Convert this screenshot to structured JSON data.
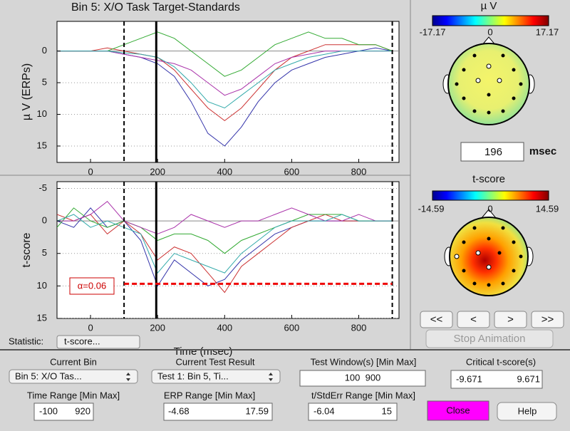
{
  "erp_plot": {
    "title": "Bin 5: X/O Task Target-Standards",
    "ylabel": "µ V (ERPs)",
    "xlim": [
      -100,
      920
    ],
    "ylim": [
      -4.68,
      17.59
    ],
    "xticks": [
      0,
      200,
      400,
      600,
      800
    ],
    "yticks": [
      0,
      5,
      10,
      15
    ],
    "window": [
      100,
      900
    ],
    "cursor_ms": 196,
    "x": [
      -100,
      -50,
      0,
      50,
      100,
      150,
      200,
      250,
      300,
      350,
      400,
      450,
      500,
      550,
      600,
      650,
      700,
      750,
      800,
      850,
      900
    ],
    "series": [
      {
        "color": "#3333aa",
        "values": [
          0,
          0,
          0,
          0,
          0.5,
          1,
          2,
          4,
          8,
          13,
          15,
          12,
          8,
          5,
          3,
          2,
          1,
          0.5,
          0,
          -0.5,
          0
        ]
      },
      {
        "color": "#cc3333",
        "values": [
          0,
          0,
          0,
          -0.5,
          0,
          0.5,
          1,
          3,
          6,
          9,
          11,
          9,
          6,
          3,
          1,
          0,
          -1,
          -1,
          -1,
          -1,
          0
        ]
      },
      {
        "color": "#33aa33",
        "values": [
          0,
          0,
          0,
          0,
          -1,
          -2,
          -3,
          -2,
          0,
          2,
          4,
          3,
          1,
          -1,
          -2,
          -3,
          -2,
          -2,
          -1,
          -1,
          0
        ]
      },
      {
        "color": "#aa33aa",
        "values": [
          0,
          0,
          0,
          0,
          0.5,
          1,
          1.5,
          2,
          3,
          5,
          7,
          6,
          4,
          2,
          1,
          0.5,
          0,
          0,
          0,
          0,
          0
        ]
      },
      {
        "color": "#33aaaa",
        "values": [
          0,
          0,
          0,
          0,
          0.3,
          0.5,
          1,
          2.5,
          5,
          8,
          9,
          7,
          5,
          3,
          2,
          1,
          0.5,
          0,
          0,
          0,
          0
        ]
      }
    ]
  },
  "tscore_plot": {
    "ylabel": "t-score",
    "xlabel": "Time (msec)",
    "xlim": [
      -100,
      920
    ],
    "ylim": [
      -6.04,
      15
    ],
    "xticks": [
      0,
      200,
      400,
      600,
      800
    ],
    "yticks": [
      -5,
      0,
      5,
      10,
      15
    ],
    "window": [
      100,
      900
    ],
    "cursor_ms": 196,
    "threshold": 9.671,
    "alpha_label": "α=0.06",
    "x": [
      -100,
      -50,
      0,
      50,
      100,
      150,
      200,
      250,
      300,
      350,
      400,
      450,
      500,
      550,
      600,
      650,
      700,
      750,
      800,
      850,
      900
    ],
    "series": [
      {
        "color": "#3333aa",
        "values": [
          0,
          1,
          -2,
          1,
          0,
          3,
          10,
          6,
          8,
          10,
          9,
          6,
          4,
          2,
          1,
          0,
          0,
          0,
          0,
          0,
          0
        ]
      },
      {
        "color": "#cc3333",
        "values": [
          -1,
          0,
          -1,
          2,
          0,
          2,
          6,
          4,
          5,
          8,
          11,
          7,
          5,
          3,
          1,
          0,
          -1,
          0,
          0,
          0,
          0
        ]
      },
      {
        "color": "#33aa33",
        "values": [
          1,
          -2,
          0,
          1,
          0,
          1,
          3,
          2,
          2,
          3,
          5,
          3,
          2,
          1,
          0,
          -1,
          -1,
          -1,
          0,
          0,
          0
        ]
      },
      {
        "color": "#aa33aa",
        "values": [
          0,
          0,
          -1,
          -3,
          0,
          1,
          2,
          1,
          -1,
          0,
          1,
          0,
          0,
          -1,
          -2,
          -1,
          0,
          0,
          -1,
          0,
          0
        ]
      },
      {
        "color": "#33aaaa",
        "values": [
          0,
          -1,
          1,
          0,
          1,
          2,
          8,
          5,
          6,
          7,
          8,
          5,
          3,
          1,
          0,
          0,
          0,
          -1,
          0,
          0,
          0
        ]
      }
    ],
    "statistic_label": "Statistic:",
    "statistic_value": "t-score..."
  },
  "topo_erp": {
    "title": "µ V",
    "min": "-17.17",
    "mid": "0",
    "max": "17.17",
    "latency": "196",
    "unit": "msec"
  },
  "topo_t": {
    "title": "t-score",
    "min": "-14.59",
    "mid": "0",
    "max": "14.59"
  },
  "animation": {
    "first": "<<",
    "prev": "<",
    "next": ">",
    "last": ">>",
    "stop": "Stop Animation"
  },
  "controls": {
    "current_bin": {
      "label": "Current Bin",
      "value": "Bin 5: X/O Tas..."
    },
    "current_test": {
      "label": "Current Test Result",
      "value": "Test 1: Bin 5, Ti..."
    },
    "test_window": {
      "label": "Test Window(s) [Min Max]",
      "value": "100  900"
    },
    "critical": {
      "label": "Critical t-score(s)",
      "min": "-9.671",
      "max": "9.671"
    },
    "time_range": {
      "label": "Time Range [Min Max]",
      "min": "-100",
      "max": "920"
    },
    "erp_range": {
      "label": "ERP Range [Min Max]",
      "min": "-4.68",
      "max": "17.59"
    },
    "t_range": {
      "label": "t/StdErr Range [Min Max]",
      "min": "-6.04",
      "max": "15"
    },
    "close": "Close",
    "help": "Help"
  }
}
